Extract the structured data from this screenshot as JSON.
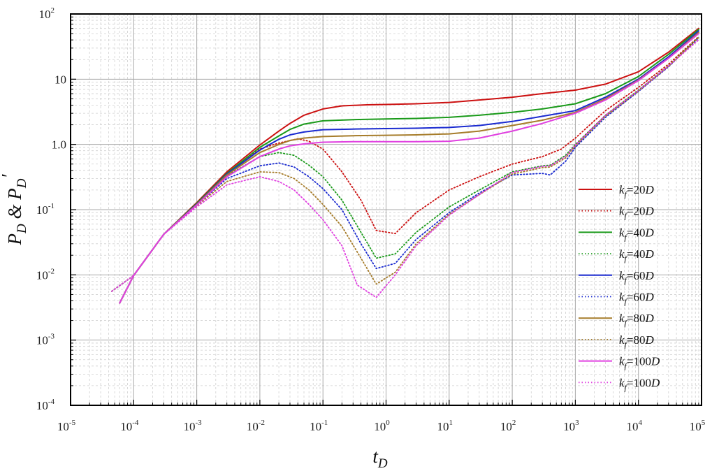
{
  "chart_data": {
    "type": "line",
    "title": "",
    "xlabel": {
      "main": "t",
      "sub": "D"
    },
    "ylabel": {
      "p1": "P",
      "sub1": "D",
      "amp": " & ",
      "p2": "P",
      "sub2": "D",
      "prime": "′"
    },
    "x_scale": "log",
    "y_scale": "log",
    "xlim": [
      1e-05,
      100000
    ],
    "ylim": [
      0.0001,
      100
    ],
    "x_ticks": [
      {
        "base": "10",
        "exp": "-5",
        "value": 1e-05
      },
      {
        "base": "10",
        "exp": "-4",
        "value": 0.0001
      },
      {
        "base": "10",
        "exp": "-3",
        "value": 0.001
      },
      {
        "base": "10",
        "exp": "-2",
        "value": 0.01
      },
      {
        "base": "10",
        "exp": "-1",
        "value": 0.1
      },
      {
        "base": "10",
        "exp": "0",
        "value": 1
      },
      {
        "base": "10",
        "exp": "1",
        "value": 10
      },
      {
        "base": "10",
        "exp": "2",
        "value": 100
      },
      {
        "base": "10",
        "exp": "3",
        "value": 1000
      },
      {
        "base": "10",
        "exp": "4",
        "value": 10000
      },
      {
        "base": "10",
        "exp": "5",
        "value": 100000
      }
    ],
    "y_ticks": [
      {
        "base": "10",
        "exp": "-4",
        "value": 0.0001
      },
      {
        "base": "10",
        "exp": "-3",
        "value": 0.001
      },
      {
        "base": "10",
        "exp": "-2",
        "value": 0.01
      },
      {
        "base": "10",
        "exp": "-1",
        "value": 0.1
      },
      {
        "base": "1.0",
        "exp": "",
        "value": 1
      },
      {
        "base": "10",
        "exp": "",
        "value": 10
      },
      {
        "base": "10",
        "exp": "2",
        "value": 100
      }
    ],
    "grid": true,
    "legend_position": "right",
    "series": [
      {
        "name": {
          "k": "k",
          "sub": "f",
          "val": "=20",
          "unit": "D"
        },
        "color": "#cc1111",
        "style": "solid",
        "points": [
          [
            6e-05,
            0.0037
          ],
          [
            0.0001,
            0.0098
          ],
          [
            0.0003,
            0.042
          ],
          [
            0.001,
            0.128
          ],
          [
            0.003,
            0.38
          ],
          [
            0.01,
            0.98
          ],
          [
            0.02,
            1.6
          ],
          [
            0.03,
            2.1
          ],
          [
            0.05,
            2.8
          ],
          [
            0.1,
            3.5
          ],
          [
            0.2,
            3.9
          ],
          [
            0.5,
            4.05
          ],
          [
            1,
            4.1
          ],
          [
            3,
            4.2
          ],
          [
            10,
            4.4
          ],
          [
            30,
            4.8
          ],
          [
            100,
            5.3
          ],
          [
            300,
            6.0
          ],
          [
            1000,
            6.8
          ],
          [
            3000,
            8.4
          ],
          [
            10000,
            13
          ],
          [
            30000,
            26
          ],
          [
            90000,
            60
          ]
        ]
      },
      {
        "name": {
          "k": "k",
          "sub": "f",
          "val": "=20",
          "unit": "D"
        },
        "color": "#cc1111",
        "style": "dotted",
        "points": [
          [
            4.5e-05,
            0.0056
          ],
          [
            0.0001,
            0.0098
          ],
          [
            0.0003,
            0.042
          ],
          [
            0.001,
            0.125
          ],
          [
            0.003,
            0.36
          ],
          [
            0.01,
            0.85
          ],
          [
            0.02,
            1.05
          ],
          [
            0.04,
            1.22
          ],
          [
            0.06,
            1.12
          ],
          [
            0.1,
            0.85
          ],
          [
            0.2,
            0.38
          ],
          [
            0.4,
            0.14
          ],
          [
            0.7,
            0.048
          ],
          [
            1.4,
            0.043
          ],
          [
            3,
            0.09
          ],
          [
            10,
            0.2
          ],
          [
            30,
            0.32
          ],
          [
            100,
            0.5
          ],
          [
            300,
            0.65
          ],
          [
            600,
            0.85
          ],
          [
            1000,
            1.25
          ],
          [
            3000,
            3.3
          ],
          [
            10000,
            7.5
          ],
          [
            30000,
            17
          ],
          [
            90000,
            45
          ]
        ]
      },
      {
        "name": {
          "k": "k",
          "sub": "f",
          "val": "=40",
          "unit": "D"
        },
        "color": "#1a9a1a",
        "style": "solid",
        "points": [
          [
            6e-05,
            0.0037
          ],
          [
            0.0001,
            0.0098
          ],
          [
            0.0003,
            0.042
          ],
          [
            0.001,
            0.125
          ],
          [
            0.003,
            0.36
          ],
          [
            0.01,
            0.9
          ],
          [
            0.02,
            1.35
          ],
          [
            0.03,
            1.7
          ],
          [
            0.05,
            2.05
          ],
          [
            0.1,
            2.3
          ],
          [
            0.3,
            2.4
          ],
          [
            1,
            2.45
          ],
          [
            3,
            2.5
          ],
          [
            10,
            2.6
          ],
          [
            30,
            2.8
          ],
          [
            100,
            3.1
          ],
          [
            300,
            3.5
          ],
          [
            1000,
            4.2
          ],
          [
            3000,
            6
          ],
          [
            10000,
            11
          ],
          [
            30000,
            24
          ],
          [
            90000,
            58
          ]
        ]
      },
      {
        "name": {
          "k": "k",
          "sub": "f",
          "val": "=40",
          "unit": "D"
        },
        "color": "#1a9a1a",
        "style": "dotted",
        "points": [
          [
            4.5e-05,
            0.0056
          ],
          [
            0.0001,
            0.0098
          ],
          [
            0.0003,
            0.042
          ],
          [
            0.001,
            0.12
          ],
          [
            0.003,
            0.33
          ],
          [
            0.01,
            0.65
          ],
          [
            0.02,
            0.75
          ],
          [
            0.035,
            0.68
          ],
          [
            0.06,
            0.48
          ],
          [
            0.1,
            0.32
          ],
          [
            0.2,
            0.14
          ],
          [
            0.4,
            0.045
          ],
          [
            0.7,
            0.018
          ],
          [
            1.4,
            0.021
          ],
          [
            3,
            0.045
          ],
          [
            10,
            0.11
          ],
          [
            30,
            0.2
          ],
          [
            100,
            0.38
          ],
          [
            300,
            0.47
          ],
          [
            400,
            0.48
          ],
          [
            700,
            0.68
          ],
          [
            1000,
            1.0
          ],
          [
            3000,
            2.8
          ],
          [
            10000,
            6.8
          ],
          [
            30000,
            16
          ],
          [
            90000,
            44
          ]
        ]
      },
      {
        "name": {
          "k": "k",
          "sub": "f",
          "val": "=60",
          "unit": "D"
        },
        "color": "#1a2ad0",
        "style": "solid",
        "points": [
          [
            6e-05,
            0.0037
          ],
          [
            0.0001,
            0.0098
          ],
          [
            0.0003,
            0.042
          ],
          [
            0.001,
            0.122
          ],
          [
            0.003,
            0.35
          ],
          [
            0.01,
            0.82
          ],
          [
            0.02,
            1.2
          ],
          [
            0.03,
            1.4
          ],
          [
            0.05,
            1.55
          ],
          [
            0.1,
            1.68
          ],
          [
            0.3,
            1.72
          ],
          [
            1,
            1.75
          ],
          [
            3,
            1.77
          ],
          [
            10,
            1.82
          ],
          [
            30,
            1.95
          ],
          [
            100,
            2.25
          ],
          [
            300,
            2.7
          ],
          [
            1000,
            3.3
          ],
          [
            3000,
            5.3
          ],
          [
            10000,
            10
          ],
          [
            30000,
            22
          ],
          [
            90000,
            55
          ]
        ]
      },
      {
        "name": {
          "k": "k",
          "sub": "f",
          "val": "=60",
          "unit": "D"
        },
        "color": "#1a2ad0",
        "style": "dotted",
        "points": [
          [
            4.5e-05,
            0.0056
          ],
          [
            0.0001,
            0.0098
          ],
          [
            0.0003,
            0.042
          ],
          [
            0.001,
            0.118
          ],
          [
            0.003,
            0.3
          ],
          [
            0.01,
            0.47
          ],
          [
            0.02,
            0.52
          ],
          [
            0.035,
            0.45
          ],
          [
            0.06,
            0.32
          ],
          [
            0.1,
            0.21
          ],
          [
            0.2,
            0.1
          ],
          [
            0.4,
            0.03
          ],
          [
            0.7,
            0.0125
          ],
          [
            1.4,
            0.015
          ],
          [
            3,
            0.035
          ],
          [
            10,
            0.09
          ],
          [
            30,
            0.18
          ],
          [
            100,
            0.34
          ],
          [
            300,
            0.36
          ],
          [
            400,
            0.34
          ],
          [
            700,
            0.55
          ],
          [
            1000,
            0.9
          ],
          [
            3000,
            2.6
          ],
          [
            10000,
            6.5
          ],
          [
            30000,
            15.5
          ],
          [
            90000,
            43
          ]
        ]
      },
      {
        "name": {
          "k": "k",
          "sub": "f",
          "val": "=80",
          "unit": "D"
        },
        "color": "#a67c2a",
        "style": "solid",
        "points": [
          [
            6e-05,
            0.0037
          ],
          [
            0.0001,
            0.0098
          ],
          [
            0.0003,
            0.042
          ],
          [
            0.001,
            0.12
          ],
          [
            0.003,
            0.34
          ],
          [
            0.01,
            0.75
          ],
          [
            0.02,
            1.0
          ],
          [
            0.03,
            1.15
          ],
          [
            0.05,
            1.25
          ],
          [
            0.1,
            1.32
          ],
          [
            0.3,
            1.36
          ],
          [
            1,
            1.38
          ],
          [
            3,
            1.4
          ],
          [
            10,
            1.45
          ],
          [
            30,
            1.6
          ],
          [
            100,
            1.95
          ],
          [
            300,
            2.35
          ],
          [
            1000,
            3.1
          ],
          [
            3000,
            5
          ],
          [
            10000,
            9.7
          ],
          [
            30000,
            21
          ],
          [
            90000,
            52
          ]
        ]
      },
      {
        "name": {
          "k": "k",
          "sub": "f",
          "val": "=80",
          "unit": "D"
        },
        "color": "#a67c2a",
        "style": "dotted",
        "points": [
          [
            4.5e-05,
            0.0056
          ],
          [
            0.0001,
            0.0098
          ],
          [
            0.0003,
            0.042
          ],
          [
            0.001,
            0.115
          ],
          [
            0.003,
            0.27
          ],
          [
            0.01,
            0.38
          ],
          [
            0.02,
            0.37
          ],
          [
            0.035,
            0.3
          ],
          [
            0.06,
            0.2
          ],
          [
            0.1,
            0.12
          ],
          [
            0.2,
            0.055
          ],
          [
            0.4,
            0.018
          ],
          [
            0.7,
            0.0072
          ],
          [
            1.4,
            0.011
          ],
          [
            3,
            0.03
          ],
          [
            10,
            0.085
          ],
          [
            30,
            0.17
          ],
          [
            100,
            0.35
          ],
          [
            300,
            0.44
          ],
          [
            400,
            0.45
          ],
          [
            700,
            0.62
          ],
          [
            1000,
            0.95
          ],
          [
            3000,
            2.7
          ],
          [
            10000,
            6.6
          ],
          [
            30000,
            15.8
          ],
          [
            90000,
            43.5
          ]
        ]
      },
      {
        "name": {
          "k": "k",
          "sub": "f",
          "val": "=100",
          "unit": "D"
        },
        "color": "#e040e0",
        "style": "solid",
        "points": [
          [
            6e-05,
            0.0037
          ],
          [
            0.0001,
            0.0098
          ],
          [
            0.0003,
            0.042
          ],
          [
            0.001,
            0.118
          ],
          [
            0.003,
            0.32
          ],
          [
            0.01,
            0.65
          ],
          [
            0.02,
            0.85
          ],
          [
            0.03,
            0.95
          ],
          [
            0.05,
            1.02
          ],
          [
            0.1,
            1.08
          ],
          [
            0.3,
            1.1
          ],
          [
            1,
            1.1
          ],
          [
            3,
            1.1
          ],
          [
            10,
            1.12
          ],
          [
            30,
            1.25
          ],
          [
            100,
            1.6
          ],
          [
            300,
            2.1
          ],
          [
            1000,
            3.0
          ],
          [
            3000,
            4.8
          ],
          [
            10000,
            9.5
          ],
          [
            30000,
            21
          ],
          [
            90000,
            50
          ]
        ]
      },
      {
        "name": {
          "k": "k",
          "sub": "f",
          "val": "=100",
          "unit": "D"
        },
        "color": "#e040e0",
        "style": "dotted",
        "points": [
          [
            4.5e-05,
            0.0056
          ],
          [
            0.0001,
            0.0098
          ],
          [
            0.0003,
            0.042
          ],
          [
            0.001,
            0.11
          ],
          [
            0.003,
            0.24
          ],
          [
            0.01,
            0.32
          ],
          [
            0.02,
            0.27
          ],
          [
            0.035,
            0.2
          ],
          [
            0.06,
            0.12
          ],
          [
            0.1,
            0.07
          ],
          [
            0.2,
            0.028
          ],
          [
            0.35,
            0.007
          ],
          [
            0.7,
            0.0045
          ],
          [
            1.4,
            0.01
          ],
          [
            3,
            0.028
          ],
          [
            10,
            0.082
          ],
          [
            30,
            0.17
          ],
          [
            100,
            0.37
          ],
          [
            300,
            0.46
          ],
          [
            400,
            0.47
          ],
          [
            700,
            0.65
          ],
          [
            1000,
            0.98
          ],
          [
            3000,
            2.8
          ],
          [
            10000,
            6.7
          ],
          [
            30000,
            16
          ],
          [
            90000,
            40
          ]
        ]
      }
    ]
  }
}
